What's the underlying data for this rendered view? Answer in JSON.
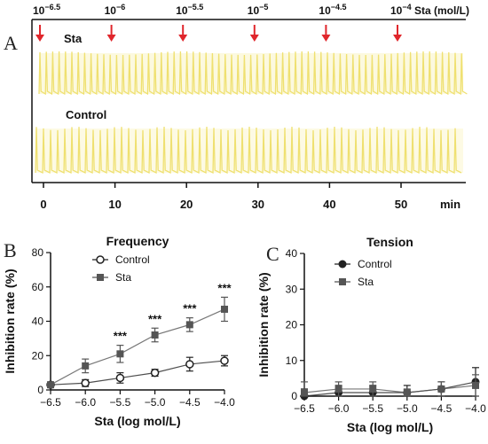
{
  "panel_a": {
    "panel_label": "A",
    "concentrations": [
      {
        "base": "10",
        "exp": "−6.5",
        "time": 0
      },
      {
        "base": "10",
        "exp": "−6",
        "time": 10
      },
      {
        "base": "10",
        "exp": "−5.5",
        "time": 20
      },
      {
        "base": "10",
        "exp": "−5",
        "time": 30
      },
      {
        "base": "10",
        "exp": "−4.5",
        "time": 40
      },
      {
        "base": "10",
        "exp": "−4",
        "time": 50
      }
    ],
    "concentration_unit": "Sta (mol/L)",
    "trace_top_label": "Sta",
    "trace_bottom_label": "Control",
    "time_ticks": [
      "0",
      "10",
      "20",
      "30",
      "40",
      "50"
    ],
    "time_unit": "min",
    "colors": {
      "arrow": "#e0262c",
      "trace": "#efe070"
    }
  },
  "chart_data": [
    {
      "panel_label": "B",
      "type": "line",
      "title": "Frequency",
      "xlabel": "Sta (log mol/L)",
      "ylabel": "Inhibition rate (%)",
      "x": [
        -6.5,
        -6.0,
        -5.5,
        -5.0,
        -4.5,
        -4.0
      ],
      "x_tick_labels": [
        "−6.5",
        "−6.0",
        "−5.5",
        "−5.0",
        "−4.5",
        "−4.0"
      ],
      "xlim": [
        -6.5,
        -4.0
      ],
      "ylim": [
        0,
        80
      ],
      "y_ticks": [
        0,
        20,
        40,
        60,
        80
      ],
      "legend_position": "top-left",
      "series": [
        {
          "name": "Control",
          "values": [
            3,
            4,
            7,
            10,
            15,
            17
          ],
          "errors": [
            1,
            2,
            3,
            2,
            4,
            3
          ],
          "marker": "open-circle",
          "color": "#222222"
        },
        {
          "name": "Sta",
          "values": [
            3,
            14,
            21,
            32,
            38,
            47
          ],
          "errors": [
            1,
            4,
            5,
            4,
            4,
            7
          ],
          "marker": "filled-square",
          "color": "#555555"
        }
      ],
      "annotations": [
        {
          "x": -5.5,
          "text": "***"
        },
        {
          "x": -5.0,
          "text": "***"
        },
        {
          "x": -4.5,
          "text": "***"
        },
        {
          "x": -4.0,
          "text": "***"
        }
      ]
    },
    {
      "panel_label": "C",
      "type": "line",
      "title": "Tension",
      "xlabel": "Sta (log mol/L)",
      "ylabel": "Inhibition rate (%)",
      "x": [
        -6.5,
        -6.0,
        -5.5,
        -5.0,
        -4.5,
        -4.0
      ],
      "x_tick_labels": [
        "−6.5",
        "−6.0",
        "−5.5",
        "−5.0",
        "−4.5",
        "−4.0"
      ],
      "xlim": [
        -6.5,
        -4.0
      ],
      "ylim": [
        0,
        40
      ],
      "y_ticks": [
        0,
        10,
        20,
        30,
        40
      ],
      "legend_position": "top-left",
      "series": [
        {
          "name": "Control",
          "values": [
            0,
            1,
            1,
            1,
            2,
            4
          ],
          "errors": [
            2,
            2,
            2,
            2,
            2,
            4
          ],
          "marker": "filled-circle",
          "color": "#222222"
        },
        {
          "name": "Sta",
          "values": [
            1,
            2,
            2,
            1,
            2,
            3
          ],
          "errors": [
            3,
            2,
            2,
            1,
            2,
            3
          ],
          "marker": "filled-square",
          "color": "#555555"
        }
      ]
    }
  ]
}
